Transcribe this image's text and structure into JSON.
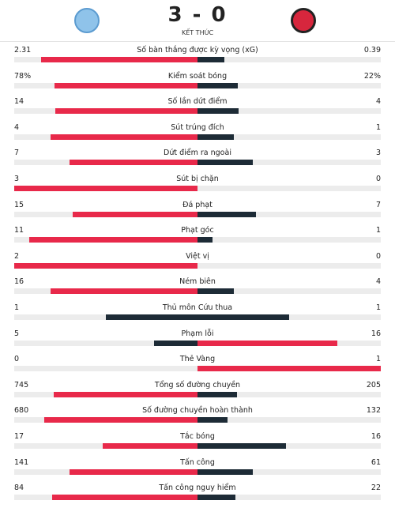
{
  "header": {
    "score": "3 - 0",
    "status": "KẾT THÚC"
  },
  "stats": [
    {
      "label": "Số bàn thắng được kỳ vọng (xG)",
      "home": 2.31,
      "away": 0.39
    },
    {
      "label": "Kiểm soát bóng",
      "home": {
        "value": 78,
        "label": "78%"
      },
      "away": {
        "value": 22,
        "label": "22%"
      }
    },
    {
      "label": "Số lần dứt điểm",
      "home": 14,
      "away": 4
    },
    {
      "label": "Sút trúng đích",
      "home": 4,
      "away": 1
    },
    {
      "label": "Dứt điểm ra ngoài",
      "home": 7,
      "away": 3
    },
    {
      "label": "Sút bị chặn",
      "home": 3,
      "away": 0
    },
    {
      "label": "Đá phạt",
      "home": 15,
      "away": 7
    },
    {
      "label": "Phạt góc",
      "home": 11,
      "away": 1
    },
    {
      "label": "Việt vị",
      "home": 2,
      "away": 0
    },
    {
      "label": "Ném biên",
      "home": 16,
      "away": 4
    },
    {
      "label": "Thủ môn Cứu thua",
      "home": 1,
      "away": 1
    },
    {
      "label": "Phạm lỗi",
      "home": 5,
      "away": 16
    },
    {
      "label": "Thẻ Vàng",
      "home": 0,
      "away": 1
    },
    {
      "label": "Tổng số đường chuyền",
      "home": 745,
      "away": 205
    },
    {
      "label": "Số đường chuyền hoàn thành",
      "home": 680,
      "away": 132
    },
    {
      "label": "Tắc bóng",
      "home": 17,
      "away": 16
    },
    {
      "label": "Tấn công",
      "home": 141,
      "away": 61
    },
    {
      "label": "Tấn công nguy hiểm",
      "home": 84,
      "away": 22
    }
  ]
}
